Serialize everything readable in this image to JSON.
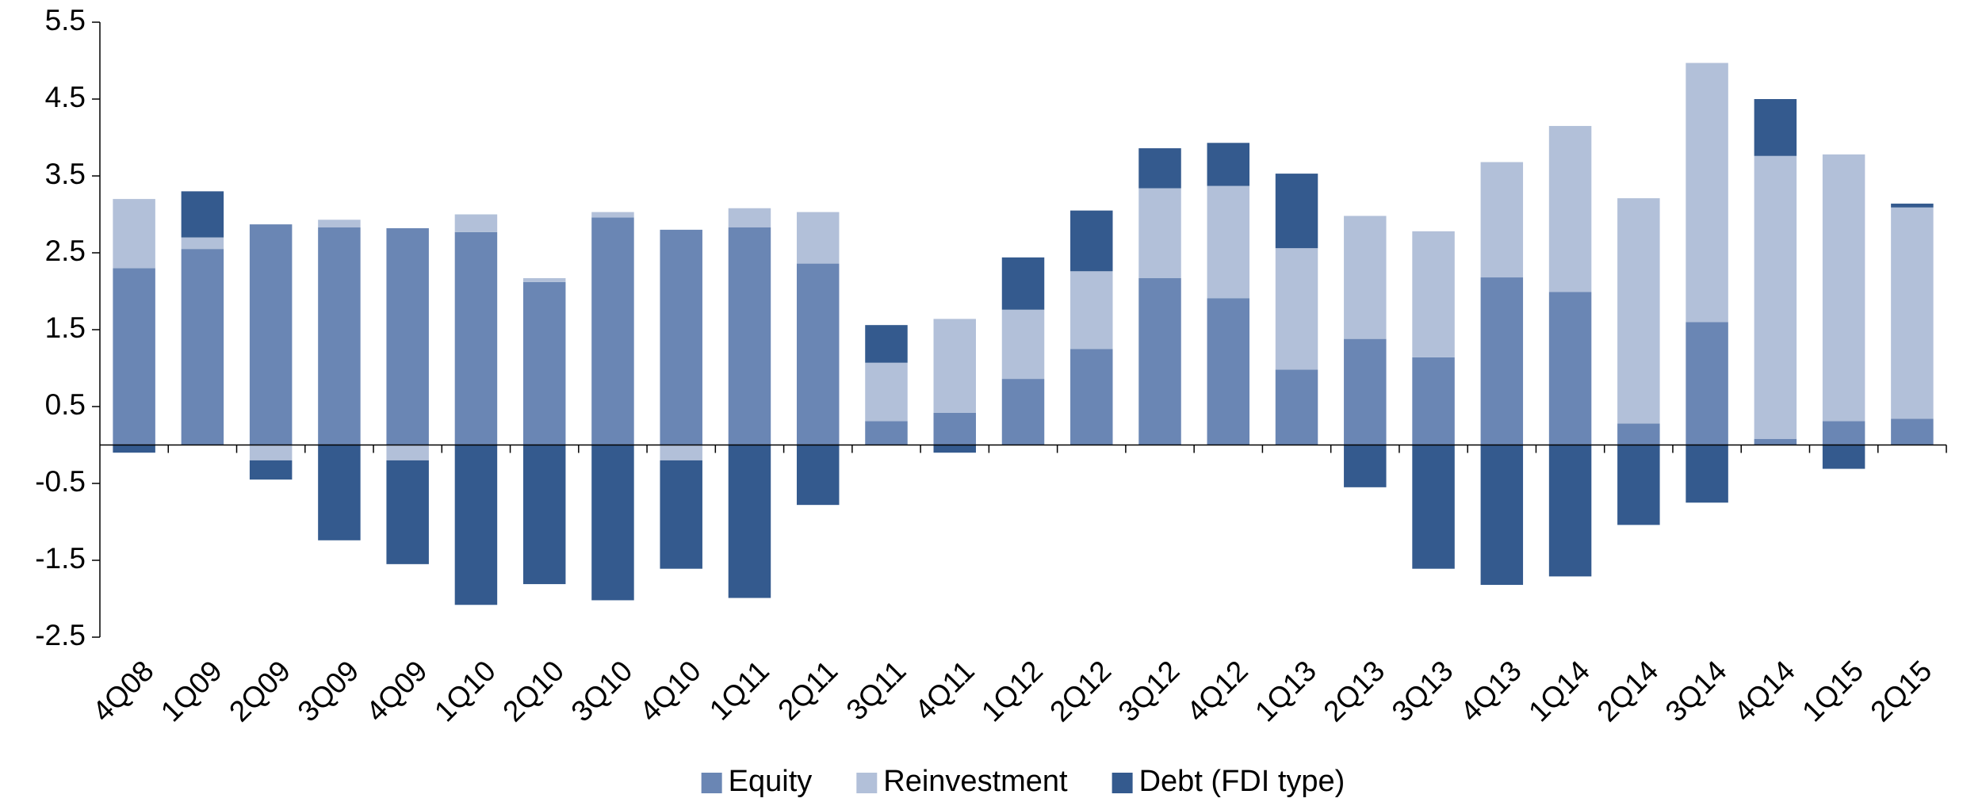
{
  "chart_data": {
    "type": "stacked_bar",
    "categories": [
      "4Q08",
      "1Q09",
      "2Q09",
      "3Q09",
      "4Q09",
      "1Q10",
      "2Q10",
      "3Q10",
      "4Q10",
      "1Q11",
      "2Q11",
      "3Q11",
      "4Q11",
      "1Q12",
      "2Q12",
      "3Q12",
      "4Q12",
      "1Q13",
      "2Q13",
      "3Q13",
      "4Q13",
      "1Q14",
      "2Q14",
      "3Q14",
      "4Q14",
      "1Q15",
      "2Q15"
    ],
    "series": [
      {
        "name": "Equity",
        "color": "#6a86b4",
        "values": [
          2.3,
          2.55,
          2.87,
          2.83,
          2.82,
          2.77,
          2.12,
          2.96,
          2.8,
          2.83,
          2.36,
          0.31,
          0.42,
          0.86,
          1.25,
          2.17,
          1.91,
          0.98,
          1.38,
          1.14,
          2.18,
          1.99,
          0.28,
          1.6,
          0.08,
          0.31,
          0.34
        ]
      },
      {
        "name": "Reinvestment",
        "color": "#b2c0d9",
        "values": [
          0.9,
          0.15,
          -0.2,
          0.1,
          -0.2,
          0.23,
          0.05,
          0.07,
          -0.2,
          0.25,
          0.67,
          0.76,
          1.22,
          0.9,
          1.01,
          1.17,
          1.46,
          1.58,
          1.6,
          1.64,
          1.5,
          2.16,
          2.93,
          3.37,
          3.68,
          3.47,
          2.75
        ]
      },
      {
        "name": "Debt (FDI type)",
        "color": "#345a8e",
        "values": [
          -0.1,
          0.6,
          -0.25,
          -1.24,
          -1.35,
          -2.08,
          -1.81,
          -2.02,
          -1.41,
          -1.99,
          -0.78,
          0.49,
          -0.1,
          0.68,
          0.79,
          0.52,
          0.56,
          0.97,
          -0.55,
          -1.61,
          -1.82,
          -1.71,
          -1.04,
          -0.75,
          0.74,
          -0.31,
          0.05
        ]
      }
    ],
    "ylim": [
      -2.5,
      5.5
    ],
    "yticks": [
      -2.5,
      -1.5,
      -0.5,
      0.5,
      1.5,
      2.5,
      3.5,
      4.5,
      5.5
    ],
    "legend": "bottom"
  }
}
